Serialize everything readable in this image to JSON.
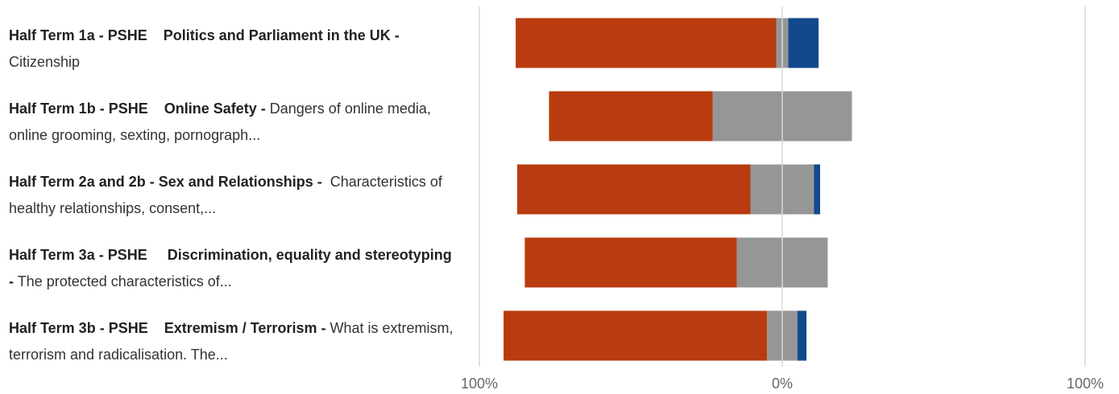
{
  "chart_data": {
    "type": "diverging-bar",
    "categories": [
      {
        "title": "Half Term 1a - PSHE    Politics and Parliament in the UK -",
        "detail": "Citizenship"
      },
      {
        "title": "Half Term 1b - PSHE    Online Safety -",
        "detail": "Dangers of online media, online grooming, sexting, pornograph..."
      },
      {
        "title": "Half Term 2a and 2b - Sex and Relationships -",
        "detail": " Characteristics of healthy relationships, consent,..."
      },
      {
        "title": "Half Term 3a - PSHE     Discrimination, equality and stereotyping -",
        "detail": "The protected characteristics of..."
      },
      {
        "title": "Half Term 3b - PSHE    Extremism / Terrorism -",
        "detail": "What is extremism, terrorism and radicalisation. The..."
      }
    ],
    "series": [
      {
        "color": "#b83c0f",
        "side": "negative",
        "values": [
          86,
          54,
          77,
          70,
          87
        ]
      },
      {
        "color": "#969696",
        "side": "neutral",
        "values": [
          4,
          46,
          21,
          30,
          10
        ]
      },
      {
        "color": "#12498c",
        "side": "positive",
        "values": [
          10,
          0,
          2,
          0,
          3
        ]
      }
    ],
    "xlim": [
      -100,
      100
    ],
    "xticks": [
      {
        "value": -100,
        "label": "100%"
      },
      {
        "value": 0,
        "label": "0%"
      },
      {
        "value": 100,
        "label": "100%"
      }
    ],
    "grid": true
  }
}
